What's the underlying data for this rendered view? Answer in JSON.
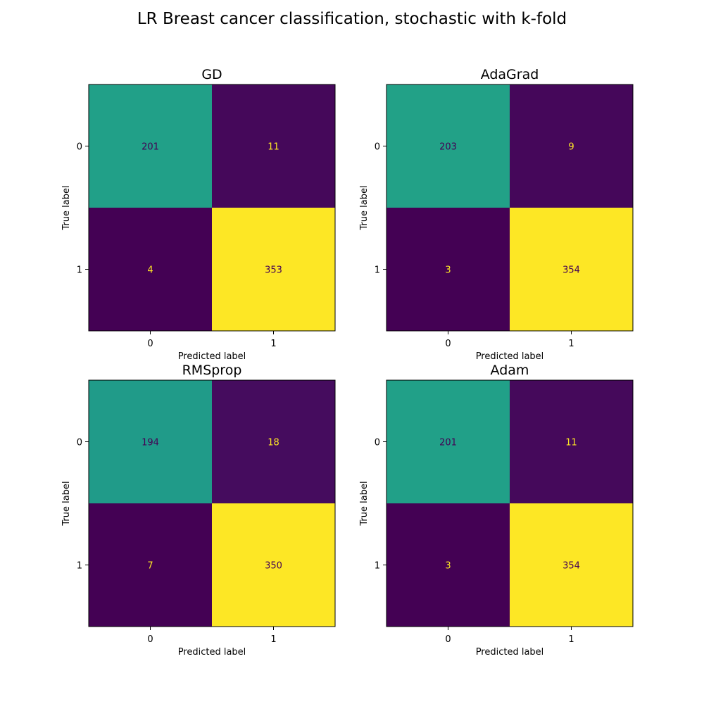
{
  "figure_title": "LR Breast cancer classification, stochastic with k-fold",
  "colors": {
    "viridis_low": "#440154",
    "viridis_mid": "#21918c",
    "viridis_high": "#fde725"
  },
  "chart_data": [
    {
      "type": "heatmap",
      "title": "GD",
      "xlabel": "Predicted label",
      "ylabel": "True label",
      "x_tick_labels": [
        "0",
        "1"
      ],
      "y_tick_labels": [
        "0",
        "1"
      ],
      "matrix": [
        [
          201,
          11
        ],
        [
          4,
          353
        ]
      ],
      "colormap": "viridis",
      "grid": false,
      "colorbar": false
    },
    {
      "type": "heatmap",
      "title": "AdaGrad",
      "xlabel": "Predicted label",
      "ylabel": "True label",
      "x_tick_labels": [
        "0",
        "1"
      ],
      "y_tick_labels": [
        "0",
        "1"
      ],
      "matrix": [
        [
          203,
          9
        ],
        [
          3,
          354
        ]
      ],
      "colormap": "viridis",
      "grid": false,
      "colorbar": false
    },
    {
      "type": "heatmap",
      "title": "RMSprop",
      "xlabel": "Predicted label",
      "ylabel": "True label",
      "x_tick_labels": [
        "0",
        "1"
      ],
      "y_tick_labels": [
        "0",
        "1"
      ],
      "matrix": [
        [
          194,
          18
        ],
        [
          7,
          350
        ]
      ],
      "colormap": "viridis",
      "grid": false,
      "colorbar": false
    },
    {
      "type": "heatmap",
      "title": "Adam",
      "xlabel": "Predicted label",
      "ylabel": "True label",
      "x_tick_labels": [
        "0",
        "1"
      ],
      "y_tick_labels": [
        "0",
        "1"
      ],
      "matrix": [
        [
          201,
          11
        ],
        [
          3,
          354
        ]
      ],
      "colormap": "viridis",
      "grid": false,
      "colorbar": false
    }
  ]
}
